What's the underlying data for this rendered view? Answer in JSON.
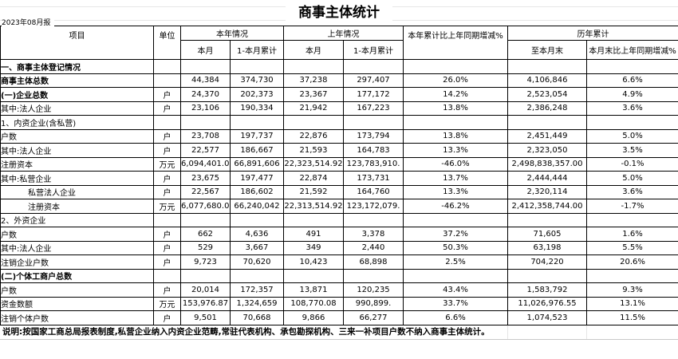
{
  "page": {
    "title": "商事主体统计",
    "date_label": "2023年08月报",
    "note": "说明:按国家工商总局报表制度,私营企业纳入内资企业范畴,常驻代表机构、承包勘探机构、三来一补项目户数不纳入商事主体统计。"
  },
  "colors": {
    "table_border": "#000000",
    "gridline": "#e6e6e6",
    "text": "#000000",
    "background": "#ffffff"
  },
  "table": {
    "header": {
      "item": "项目",
      "unit": "单位",
      "this_year": "本年情况",
      "last_year": "上年情况",
      "yoy_cumulative": "本年累计比上年同期增减%",
      "historical": "历年累计",
      "this_year_month": "本月",
      "this_year_cum": "1-本月累计",
      "last_year_month": "本月",
      "last_year_cum": "1-本月累计",
      "to_month_end": "至本月末",
      "month_end_yoy": "本月末比上年同期增减%"
    },
    "rows": [
      {
        "label": "一、商事主体登记情况",
        "unit": "",
        "values": [
          "",
          "",
          "",
          "",
          "",
          "",
          ""
        ],
        "bold": true,
        "indent": false
      },
      {
        "label": "商事主体总数",
        "unit": "",
        "values": [
          "44,384",
          "374,730",
          "37,238",
          "297,407",
          "26.0%",
          "4,106,846",
          "6.6%"
        ],
        "bold": true,
        "indent": false
      },
      {
        "label": "(一)企业总数",
        "unit": "户",
        "values": [
          "24,370",
          "202,373",
          "23,367",
          "177,172",
          "14.2%",
          "2,523,054",
          "4.9%"
        ],
        "bold": true,
        "indent": false
      },
      {
        "label": "其中:法人企业",
        "unit": "户",
        "values": [
          "23,106",
          "190,334",
          "21,942",
          "167,223",
          "13.8%",
          "2,386,248",
          "3.6%"
        ],
        "bold": false,
        "indent": false
      },
      {
        "label": "1、内资企业(含私营)",
        "unit": "",
        "values": [
          "",
          "",
          "",
          "",
          "",
          "",
          ""
        ],
        "bold": false,
        "indent": false
      },
      {
        "label": "户数",
        "unit": "户",
        "values": [
          "23,708",
          "197,737",
          "22,876",
          "173,794",
          "13.8%",
          "2,451,449",
          "5.0%"
        ],
        "bold": false,
        "indent": false
      },
      {
        "label": "其中:法人企业",
        "unit": "户",
        "values": [
          "22,577",
          "186,667",
          "21,593",
          "164,783",
          "13.3%",
          "2,323,050",
          "3.5%"
        ],
        "bold": false,
        "indent": false
      },
      {
        "label": "注册资本",
        "unit": "万元",
        "values": [
          "6,094,401.00",
          "66,891,606",
          "22,323,514.92",
          "123,783,910.",
          "-46.0%",
          "2,498,838,357.00",
          "-0.1%"
        ],
        "bold": false,
        "indent": false
      },
      {
        "label": "其中:私营企业",
        "unit": "户",
        "values": [
          "23,675",
          "197,477",
          "22,874",
          "173,731",
          "13.7%",
          "2,444,444",
          "5.0%"
        ],
        "bold": false,
        "indent": false
      },
      {
        "label": "私营法人企业",
        "unit": "户",
        "values": [
          "22,567",
          "186,602",
          "21,592",
          "164,760",
          "13.3%",
          "2,320,114",
          "3.6%"
        ],
        "bold": false,
        "indent": true
      },
      {
        "label": "注册资本",
        "unit": "万元",
        "values": [
          "6,077,680.00",
          "66,240,042",
          "22,313,514.92",
          "123,172,079.",
          "-46.2%",
          "2,412,358,744.00",
          "-1.7%"
        ],
        "bold": false,
        "indent": true
      },
      {
        "label": "2、外资企业",
        "unit": "",
        "values": [
          "",
          "",
          "",
          "",
          "",
          "",
          ""
        ],
        "bold": false,
        "indent": false
      },
      {
        "label": "户数",
        "unit": "户",
        "values": [
          "662",
          "4,636",
          "491",
          "3,378",
          "37.2%",
          "71,605",
          "1.6%"
        ],
        "bold": false,
        "indent": false
      },
      {
        "label": "其中:法人企业",
        "unit": "户",
        "values": [
          "529",
          "3,667",
          "349",
          "2,440",
          "50.3%",
          "63,198",
          "5.5%"
        ],
        "bold": false,
        "indent": false
      },
      {
        "label": "注销企业户数",
        "unit": "户",
        "values": [
          "9,723",
          "70,620",
          "10,423",
          "68,898",
          "2.5%",
          "704,220",
          "20.6%"
        ],
        "bold": false,
        "indent": false
      },
      {
        "label": "(二)个体工商户总数",
        "unit": "",
        "values": [
          "",
          "",
          "",
          "",
          "",
          "",
          ""
        ],
        "bold": true,
        "indent": false
      },
      {
        "label": "户数",
        "unit": "户",
        "values": [
          "20,014",
          "172,357",
          "13,871",
          "120,235",
          "43.4%",
          "1,583,792",
          "9.3%"
        ],
        "bold": false,
        "indent": false
      },
      {
        "label": "资金数额",
        "unit": "万元",
        "values": [
          "153,976.87",
          "1,324,659",
          "108,770.08",
          "990,899.",
          "33.7%",
          "11,026,976.55",
          "13.1%"
        ],
        "bold": false,
        "indent": false
      },
      {
        "label": "注销个体户数",
        "unit": "户",
        "values": [
          "9,501",
          "70,668",
          "9,866",
          "66,277",
          "6.6%",
          "1,074,523",
          "11.5%"
        ],
        "bold": false,
        "indent": false
      }
    ]
  }
}
